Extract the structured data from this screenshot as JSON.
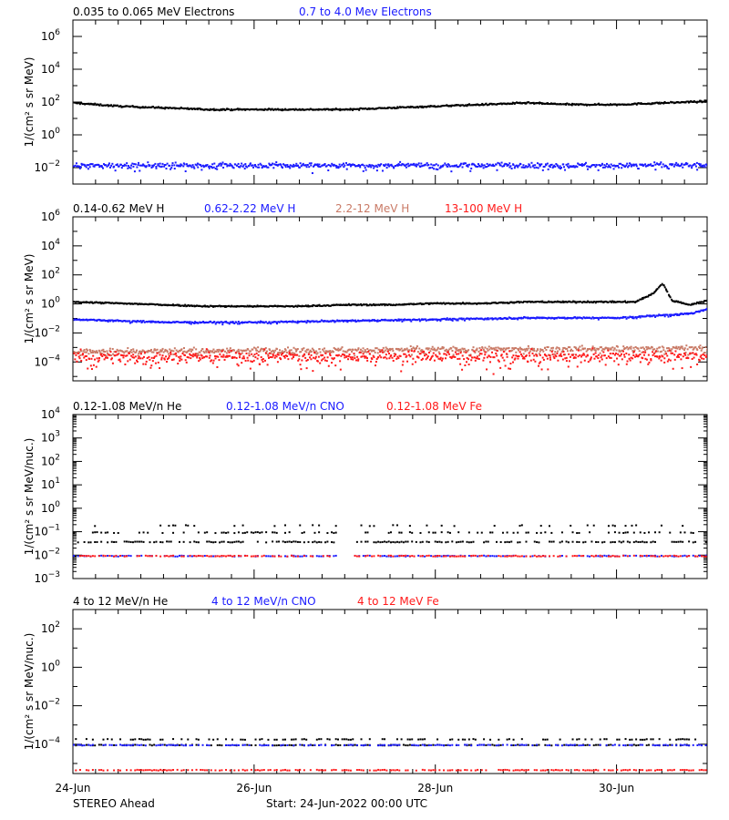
{
  "colors": {
    "black": "#000000",
    "blue": "#1a1aff",
    "salmon": "#c97a66",
    "red": "#ff1a1a"
  },
  "time_axis": {
    "start": "24-Jun-2022 00:00",
    "end": "01-Jul-2022 00:00",
    "tick_labels": [
      "24-Jun",
      "26-Jun",
      "28-Jun",
      "30-Jun"
    ],
    "major_tick_days": [
      0,
      2,
      4,
      6
    ],
    "minor_tick_spacing_days": 0.25
  },
  "footer": {
    "source": "STEREO Ahead",
    "start_label": "Start: 24-Jun-2022 00:00 UTC"
  },
  "chart_data": [
    {
      "type": "scatter",
      "panel": "electrons",
      "ylabel": "1/(cm² s sr MeV)",
      "yscale": "log",
      "ylim": [
        0.001,
        10000000
      ],
      "y_tick_labels": [
        "10^-2",
        "10^0",
        "10^2",
        "10^4",
        "10^6"
      ],
      "y_tick_exponents": [
        -2,
        0,
        2,
        4,
        6
      ],
      "series": [
        {
          "name": "0.035 to 0.065 MeV Electrons",
          "color": "black",
          "x_days": [
            0,
            0.5,
            1,
            1.5,
            2,
            2.5,
            3,
            3.5,
            4,
            4.5,
            5,
            5.5,
            6,
            6.5,
            7
          ],
          "log10_y": [
            2.0,
            1.8,
            1.7,
            1.6,
            1.6,
            1.6,
            1.6,
            1.7,
            1.8,
            1.9,
            2.0,
            1.9,
            1.9,
            2.0,
            2.1
          ],
          "scatter_dex": 0.05
        },
        {
          "name": "0.7 to 4.0 Mev Electrons",
          "color": "blue",
          "x_days": [
            0,
            7
          ],
          "log10_y": [
            -1.8,
            -1.8
          ],
          "scatter_dex": 0.15
        }
      ]
    },
    {
      "type": "scatter",
      "panel": "protons",
      "ylabel": "1/(cm² s sr MeV)",
      "yscale": "log",
      "ylim": [
        5e-06,
        1000000
      ],
      "y_tick_labels": [
        "10^-4",
        "10^-2",
        "10^0",
        "10^2",
        "10^4",
        "10^6"
      ],
      "y_tick_exponents": [
        -4,
        -2,
        0,
        2,
        4,
        6
      ],
      "series": [
        {
          "name": "0.14-0.62 MeV H",
          "color": "black",
          "x_days": [
            0,
            0.5,
            1,
            1.5,
            2,
            2.5,
            3,
            3.5,
            4,
            4.5,
            5,
            5.5,
            6,
            6.2,
            6.4,
            6.5,
            6.6,
            6.8,
            7
          ],
          "log10_y": [
            0.2,
            0.1,
            0.0,
            -0.1,
            -0.1,
            -0.1,
            0.0,
            0.0,
            0.1,
            0.1,
            0.2,
            0.2,
            0.2,
            0.2,
            0.8,
            1.5,
            0.3,
            0.0,
            0.3
          ],
          "scatter_dex": 0.05
        },
        {
          "name": "0.62-2.22 MeV H",
          "color": "blue",
          "x_days": [
            0,
            1,
            2,
            3,
            4,
            5,
            6,
            6.8,
            7
          ],
          "log10_y": [
            -1.0,
            -1.2,
            -1.2,
            -1.1,
            -1.0,
            -0.9,
            -0.9,
            -0.6,
            -0.3
          ],
          "scatter_dex": 0.05
        },
        {
          "name": "2.2-12 MeV H",
          "color": "salmon",
          "x_days": [
            0,
            7
          ],
          "log10_y": [
            -3.2,
            -3.0
          ],
          "scatter_dex": 0.2
        },
        {
          "name": "13-100 MeV H",
          "color": "red",
          "x_days": [
            0,
            7
          ],
          "log10_y": [
            -3.6,
            -3.5
          ],
          "scatter_dex": 0.4
        }
      ]
    },
    {
      "type": "scatter",
      "panel": "heavy-ions-low",
      "ylabel": "1/(cm² s sr MeV/nuc.)",
      "yscale": "log",
      "ylim": [
        0.001,
        10000
      ],
      "y_tick_labels": [
        "10^-3",
        "10^-2",
        "10^-1",
        "10^0",
        "10^1",
        "10^2",
        "10^3",
        "10^4"
      ],
      "y_tick_exponents": [
        -3,
        -2,
        -1,
        0,
        1,
        2,
        3,
        4
      ],
      "series": [
        {
          "name": "0.12-1.08 MeV/n He",
          "color": "black",
          "levels_log10_y": [
            -1.4,
            -1.0,
            -0.7
          ],
          "x_days": [
            0,
            7
          ]
        },
        {
          "name": "0.12-1.08 MeV/n CNO",
          "color": "blue",
          "levels_log10_y": [
            -2.0
          ],
          "x_days": [
            0,
            7
          ]
        },
        {
          "name": "0.12-1.08 MeV Fe",
          "color": "red",
          "levels_log10_y": [
            -2.0
          ],
          "x_days": [
            0,
            7
          ]
        }
      ]
    },
    {
      "type": "scatter",
      "panel": "heavy-ions-high",
      "ylabel": "1/(cm² s sr MeV/nuc.)",
      "yscale": "log",
      "ylim": [
        3e-06,
        1000
      ],
      "y_tick_labels": [
        "10^-4",
        "10^-2",
        "10^0",
        "10^2"
      ],
      "y_tick_exponents": [
        -4,
        -2,
        0,
        2
      ],
      "series": [
        {
          "name": "4 to 12 MeV/n He",
          "color": "black",
          "levels_log10_y": [
            -4.0,
            -3.7
          ],
          "x_days": [
            0,
            7
          ]
        },
        {
          "name": "4 to 12 MeV/n CNO",
          "color": "blue",
          "levels_log10_y": [
            -4.0
          ],
          "x_days": [
            0,
            7
          ]
        },
        {
          "name": "4 to 12 MeV Fe",
          "color": "red",
          "levels_log10_y": [
            -5.3
          ],
          "x_days": [
            0,
            7
          ]
        }
      ]
    }
  ]
}
